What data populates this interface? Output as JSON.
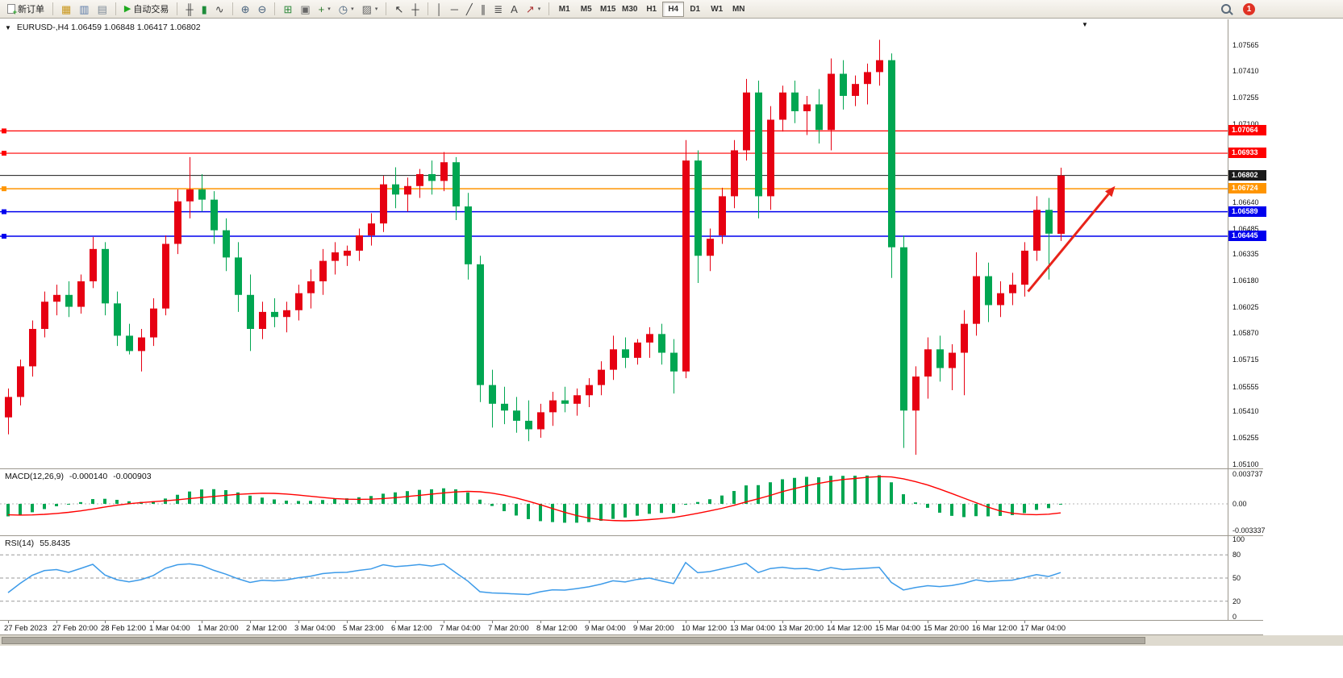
{
  "toolbar": {
    "new_order_label": "新订单",
    "autotrading_label": "自动交易",
    "autotrading_glyph": "▶",
    "caret_glyph": "▾",
    "icon_groups": {
      "g1": [
        {
          "name": "market-watch-icon",
          "glyph": "▦",
          "color": "#c9961a"
        },
        {
          "name": "data-window-icon",
          "glyph": "▥",
          "color": "#5b7aa8"
        },
        {
          "name": "navigator-icon",
          "glyph": "▤",
          "color": "#7d8a96"
        }
      ],
      "g2": [
        {
          "name": "bar-chart-icon",
          "glyph": "╫",
          "color": "#444444"
        },
        {
          "name": "candlestick-chart-icon",
          "glyph": "▮",
          "color": "#1e8c3a"
        },
        {
          "name": "line-chart-icon",
          "glyph": "∿",
          "color": "#444444"
        }
      ],
      "g3": [
        {
          "name": "zoom-in-icon",
          "glyph": "⊕",
          "color": "#47617c"
        },
        {
          "name": "zoom-out-icon",
          "glyph": "⊖",
          "color": "#47617c"
        }
      ],
      "g4": [
        {
          "name": "tile-windows-icon",
          "glyph": "⊞",
          "color": "#2f8a3d"
        },
        {
          "name": "cascade-windows-icon",
          "glyph": "▣",
          "color": "#666666"
        },
        {
          "name": "new-chart-icon",
          "glyph": "+",
          "color": "#2a7a2a",
          "caret": true
        },
        {
          "name": "periods-icon",
          "glyph": "◷",
          "color": "#47617c",
          "caret": true
        },
        {
          "name": "template-icon",
          "glyph": "▨",
          "color": "#666666",
          "caret": true
        }
      ],
      "g5": [
        {
          "name": "cursor-icon",
          "glyph": "↖",
          "color": "#333333"
        },
        {
          "name": "crosshair-icon",
          "glyph": "┼",
          "color": "#333333"
        }
      ],
      "g6": [
        {
          "name": "vertical-line-icon",
          "glyph": "│",
          "color": "#444444"
        },
        {
          "name": "horizontal-line-icon",
          "glyph": "─",
          "color": "#444444"
        },
        {
          "name": "trendline-icon",
          "glyph": "╱",
          "color": "#444444"
        },
        {
          "name": "channel-icon",
          "glyph": "∥",
          "color": "#444444"
        },
        {
          "name": "fibonacci-icon",
          "glyph": "≣",
          "color": "#444444"
        },
        {
          "name": "text-label-icon",
          "glyph": "A",
          "color": "#444444"
        },
        {
          "name": "arrow-objects-icon",
          "glyph": "↗",
          "color": "#aa3333",
          "caret": true
        }
      ]
    },
    "timeframes": [
      "M1",
      "M5",
      "M15",
      "M30",
      "H1",
      "H4",
      "D1",
      "W1",
      "MN"
    ],
    "active_timeframe": "H4",
    "notification_count": "1"
  },
  "chart_header": {
    "collapse_glyph": "▼",
    "symbol_title": "EURUSD-,H4 1.06459 1.06848 1.06417 1.06802",
    "shift_marker_glyph": "▼"
  },
  "macd": {
    "name": "MACD(12,26,9)",
    "value_main": "-0.000140",
    "value_signal": "-0.000903",
    "axis_labels": [
      "0.003737",
      "0.00",
      "-0.003337"
    ]
  },
  "rsi": {
    "name": "RSI(14)",
    "value": "55.8435",
    "axis_labels": [
      "100",
      "80",
      "50",
      "20",
      "0"
    ],
    "levels": [
      80,
      50,
      20
    ]
  },
  "time_axis": {
    "labels": [
      "27 Feb 2023",
      "27 Feb 20:00",
      "28 Feb 12:00",
      "1 Mar 04:00",
      "1 Mar 20:00",
      "2 Mar 12:00",
      "3 Mar 04:00",
      "5 Mar 23:00",
      "6 Mar 12:00",
      "7 Mar 04:00",
      "7 Mar 20:00",
      "8 Mar 12:00",
      "9 Mar 04:00",
      "9 Mar 20:00",
      "10 Mar 12:00",
      "13 Mar 04:00",
      "13 Mar 20:00",
      "14 Mar 12:00",
      "15 Mar 04:00",
      "15 Mar 20:00",
      "16 Mar 12:00",
      "17 Mar 04:00"
    ]
  },
  "chart_data": {
    "type": "candlestick",
    "symbol": "EURUSD-",
    "timeframe": "H4",
    "current_ohlc": {
      "open": "1.06459",
      "high": "1.06848",
      "low": "1.06417",
      "close": "1.06802"
    },
    "price_top": 1.0772,
    "price_bottom": 1.0508,
    "axis_labels": [
      "1.07565",
      "1.07410",
      "1.07255",
      "1.07100",
      "1.06945",
      "1.06640",
      "1.06485",
      "1.06335",
      "1.06180",
      "1.06025",
      "1.05870",
      "1.05715",
      "1.05555",
      "1.05410",
      "1.05255",
      "1.05100"
    ],
    "colors": {
      "up": "#e60012",
      "down": "#00a651",
      "macd_hist": "#00a651",
      "macd_signal": "#ff0000",
      "rsi_line": "#3d9be9"
    },
    "hlines": [
      {
        "price": 1.07064,
        "label": "1.07064",
        "color": "#ff0000",
        "w": 1.2,
        "marker": true,
        "current": false
      },
      {
        "price": 1.06933,
        "label": "1.06933",
        "color": "#ff0000",
        "w": 1.2,
        "marker": true,
        "current": false
      },
      {
        "price": 1.06802,
        "label": "1.06802",
        "color": "#1a1a1a",
        "w": 1,
        "marker": false,
        "current": true
      },
      {
        "price": 1.06724,
        "label": "1.06724",
        "color": "#ff9500",
        "w": 1.5,
        "marker": true,
        "current": false
      },
      {
        "price": 1.06589,
        "label": "1.06589",
        "color": "#0000ee",
        "w": 1.5,
        "marker": true,
        "current": false
      },
      {
        "price": 1.06445,
        "label": "1.06445",
        "color": "#0000ee",
        "w": 1.5,
        "marker": true,
        "current": false
      }
    ],
    "macd_scale": {
      "max": 0.003737,
      "min": -0.003337
    },
    "label_every": 4,
    "warmup_closes": [
      1.062,
      1.0612,
      1.0616,
      1.0607,
      1.061,
      1.0601,
      1.0605,
      1.0596,
      1.0599,
      1.059,
      1.0594,
      1.0585,
      1.0588,
      1.0579,
      1.0583,
      1.0574,
      1.0577,
      1.0568,
      1.0572,
      1.0563,
      1.0566,
      1.0557,
      1.0561,
      1.0552,
      1.0546,
      1.054
    ],
    "candles": [
      [
        1.0538,
        1.0555,
        1.0528,
        1.055
      ],
      [
        1.055,
        1.0572,
        1.0545,
        1.0568
      ],
      [
        1.0568,
        1.0595,
        1.0562,
        1.059
      ],
      [
        1.059,
        1.0612,
        1.0585,
        1.0606
      ],
      [
        1.0606,
        1.0616,
        1.0598,
        1.061
      ],
      [
        1.061,
        1.0618,
        1.0597,
        1.0603
      ],
      [
        1.0603,
        1.0622,
        1.0599,
        1.0618
      ],
      [
        1.0618,
        1.0644,
        1.0614,
        1.0637
      ],
      [
        1.0637,
        1.0641,
        1.0598,
        1.0605
      ],
      [
        1.0605,
        1.0612,
        1.058,
        1.0586
      ],
      [
        1.0586,
        1.0593,
        1.0575,
        1.0577
      ],
      [
        1.0577,
        1.059,
        1.0565,
        1.0585
      ],
      [
        1.0585,
        1.0608,
        1.058,
        1.0602
      ],
      [
        1.0602,
        1.0645,
        1.0598,
        1.064
      ],
      [
        1.064,
        1.0672,
        1.0634,
        1.0665
      ],
      [
        1.0665,
        1.0691,
        1.0655,
        1.0672
      ],
      [
        1.0672,
        1.0681,
        1.0659,
        1.0666
      ],
      [
        1.0666,
        1.0671,
        1.064,
        1.0648
      ],
      [
        1.0648,
        1.0655,
        1.0624,
        1.0632
      ],
      [
        1.0632,
        1.0641,
        1.06,
        1.061
      ],
      [
        1.061,
        1.0622,
        1.0577,
        1.059
      ],
      [
        1.059,
        1.0606,
        1.0584,
        1.06
      ],
      [
        1.06,
        1.0608,
        1.0591,
        1.0597
      ],
      [
        1.0597,
        1.0606,
        1.0588,
        1.0601
      ],
      [
        1.0601,
        1.0616,
        1.0595,
        1.0611
      ],
      [
        1.0611,
        1.0625,
        1.0602,
        1.0618
      ],
      [
        1.0618,
        1.0637,
        1.061,
        1.063
      ],
      [
        1.063,
        1.0641,
        1.0622,
        1.0635
      ],
      [
        1.0633,
        1.0639,
        1.0627,
        1.0636
      ],
      [
        1.0636,
        1.0649,
        1.063,
        1.0645
      ],
      [
        1.0645,
        1.0658,
        1.0639,
        1.0652
      ],
      [
        1.0652,
        1.068,
        1.0647,
        1.0675
      ],
      [
        1.0675,
        1.0685,
        1.0661,
        1.0669
      ],
      [
        1.0669,
        1.0679,
        1.0659,
        1.0674
      ],
      [
        1.0674,
        1.0684,
        1.0667,
        1.0681
      ],
      [
        1.0681,
        1.0689,
        1.0669,
        1.0677
      ],
      [
        1.0677,
        1.0694,
        1.0671,
        1.0688
      ],
      [
        1.0688,
        1.0691,
        1.0654,
        1.0662
      ],
      [
        1.0662,
        1.067,
        1.0619,
        1.0628
      ],
      [
        1.0628,
        1.0633,
        1.0547,
        1.0557
      ],
      [
        1.0557,
        1.0566,
        1.0532,
        1.0546
      ],
      [
        1.0546,
        1.0556,
        1.0534,
        1.0542
      ],
      [
        1.0542,
        1.055,
        1.0529,
        1.0536
      ],
      [
        1.0536,
        1.0548,
        1.0524,
        1.0531
      ],
      [
        1.0531,
        1.0546,
        1.0526,
        1.0541
      ],
      [
        1.0541,
        1.0553,
        1.0533,
        1.0548
      ],
      [
        1.0548,
        1.0556,
        1.0541,
        1.0546
      ],
      [
        1.0546,
        1.0555,
        1.0539,
        1.0551
      ],
      [
        1.0551,
        1.0561,
        1.0544,
        1.0557
      ],
      [
        1.0557,
        1.0571,
        1.0551,
        1.0566
      ],
      [
        1.0566,
        1.0586,
        1.056,
        1.0578
      ],
      [
        1.0578,
        1.0585,
        1.0567,
        1.0573
      ],
      [
        1.0573,
        1.0584,
        1.0569,
        1.0582
      ],
      [
        1.0582,
        1.0591,
        1.0573,
        1.0587
      ],
      [
        1.0587,
        1.0593,
        1.0569,
        1.0576
      ],
      [
        1.0576,
        1.0584,
        1.0552,
        1.0565
      ],
      [
        1.0565,
        1.0701,
        1.0561,
        1.0689
      ],
      [
        1.0689,
        1.0695,
        1.0617,
        1.0633
      ],
      [
        1.0633,
        1.0649,
        1.0624,
        1.0643
      ],
      [
        1.0645,
        1.0673,
        1.064,
        1.0668
      ],
      [
        1.0668,
        1.0701,
        1.0661,
        1.0695
      ],
      [
        1.0695,
        1.0737,
        1.0689,
        1.0729
      ],
      [
        1.0729,
        1.0736,
        1.0655,
        1.0668
      ],
      [
        1.0668,
        1.0721,
        1.066,
        1.0713
      ],
      [
        1.0713,
        1.0733,
        1.0706,
        1.0729
      ],
      [
        1.0729,
        1.0736,
        1.0711,
        1.0718
      ],
      [
        1.0718,
        1.0727,
        1.0704,
        1.0722
      ],
      [
        1.0722,
        1.0731,
        1.0699,
        1.0707
      ],
      [
        1.0707,
        1.0749,
        1.0695,
        1.074
      ],
      [
        1.074,
        1.0748,
        1.0719,
        1.0727
      ],
      [
        1.0727,
        1.0739,
        1.0721,
        1.0734
      ],
      [
        1.0734,
        1.0746,
        1.0722,
        1.0741
      ],
      [
        1.0741,
        1.076,
        1.0733,
        1.0748
      ],
      [
        1.0748,
        1.0752,
        1.062,
        1.0638
      ],
      [
        1.0638,
        1.0645,
        1.052,
        1.0542
      ],
      [
        1.0542,
        1.0568,
        1.0516,
        1.0562
      ],
      [
        1.0562,
        1.0585,
        1.0549,
        1.0578
      ],
      [
        1.0578,
        1.0586,
        1.0559,
        1.0567
      ],
      [
        1.0567,
        1.0581,
        1.0554,
        1.0576
      ],
      [
        1.0576,
        1.0601,
        1.0551,
        1.0593
      ],
      [
        1.0593,
        1.0635,
        1.0586,
        1.0621
      ],
      [
        1.0621,
        1.0629,
        1.0594,
        1.0604
      ],
      [
        1.0604,
        1.0618,
        1.0597,
        1.0611
      ],
      [
        1.0611,
        1.0623,
        1.0604,
        1.0616
      ],
      [
        1.0616,
        1.0641,
        1.0609,
        1.0636
      ],
      [
        1.0636,
        1.0668,
        1.063,
        1.066
      ],
      [
        1.066,
        1.0667,
        1.0619,
        1.0646
      ],
      [
        1.06459,
        1.06848,
        1.06417,
        1.06802
      ]
    ],
    "arrow": {
      "i1": 84.3,
      "p1": 1.0612,
      "i2": 91.5,
      "p2": 1.0674,
      "color": "#e8231a"
    }
  }
}
